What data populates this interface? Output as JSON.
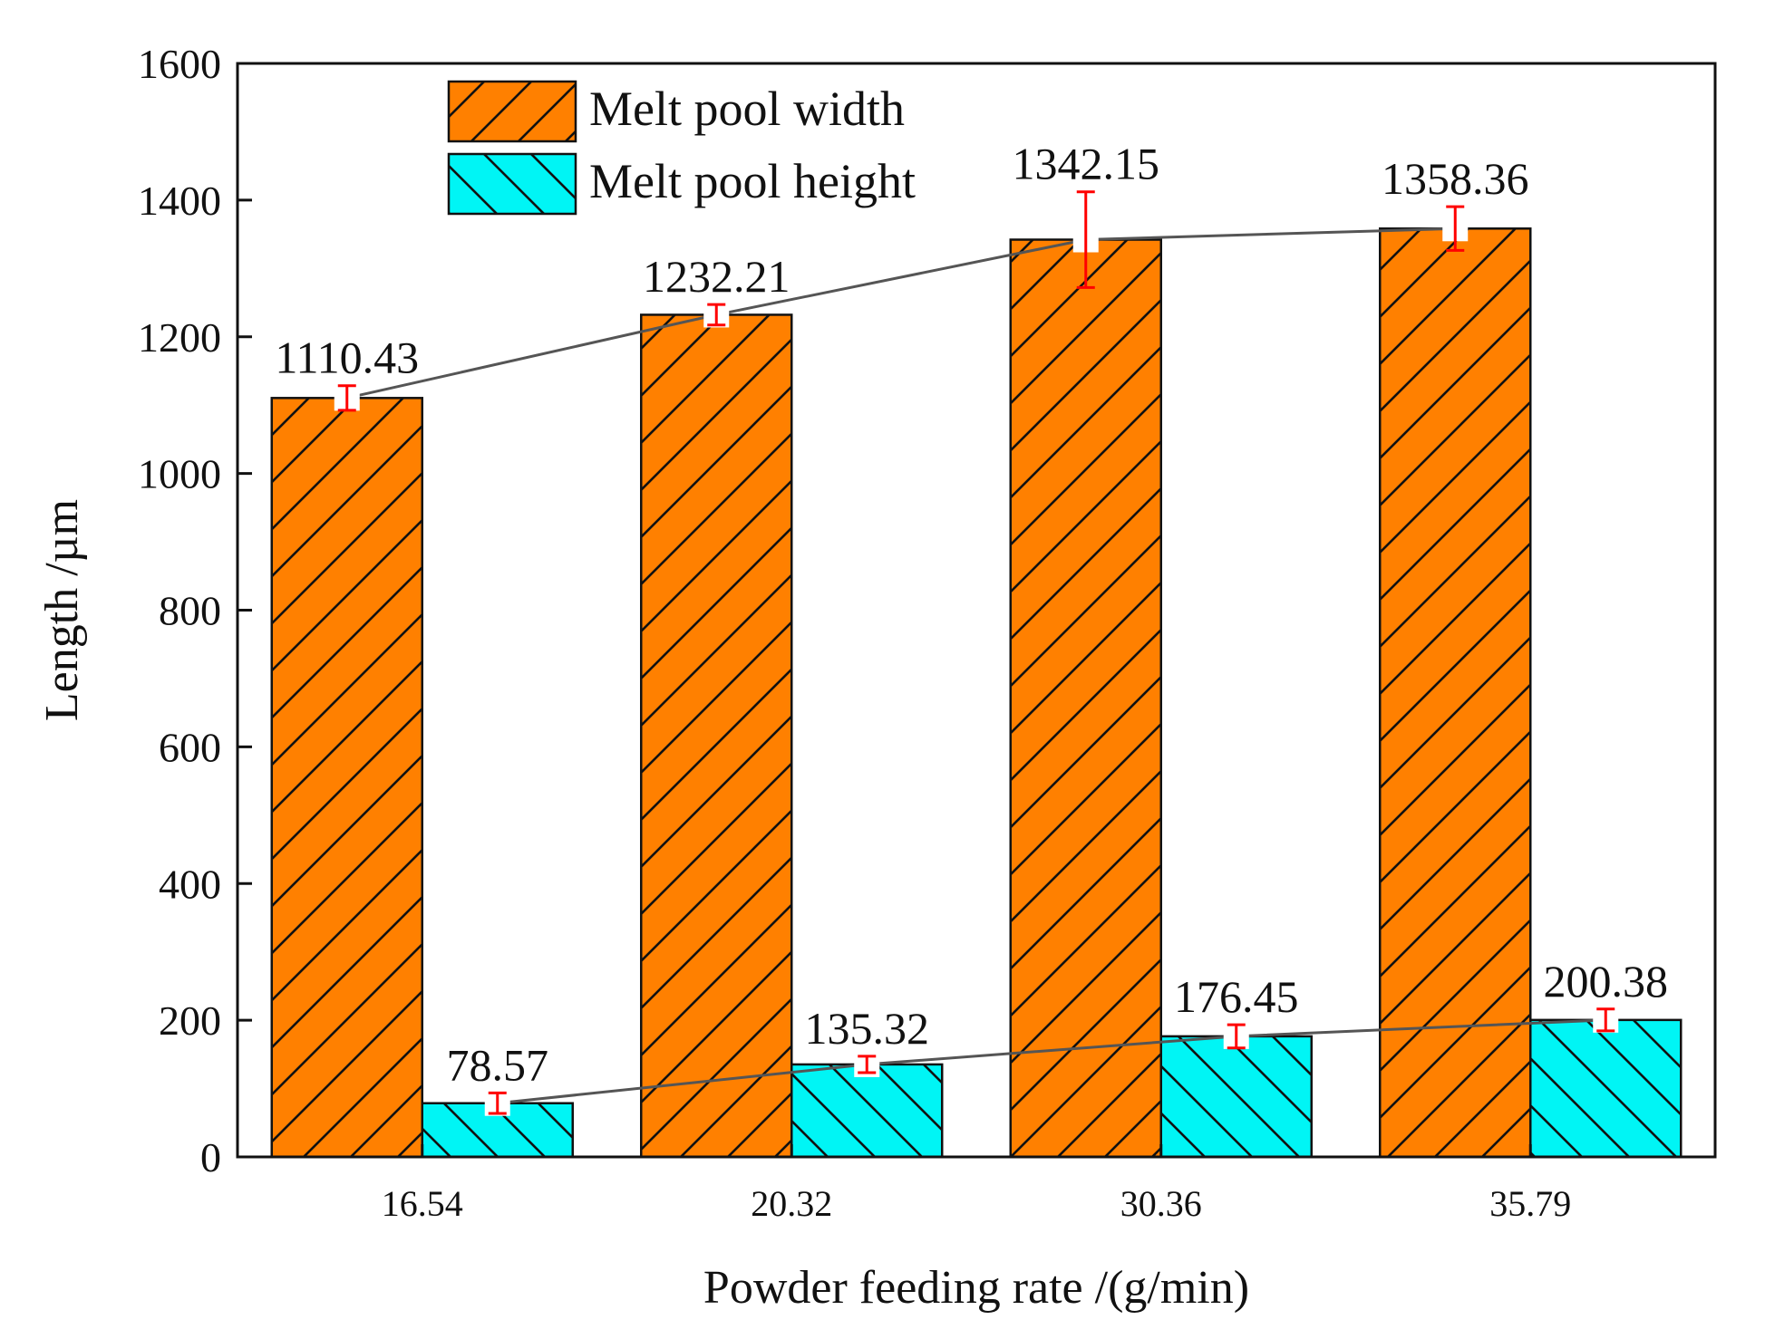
{
  "chart_data": {
    "type": "bar",
    "title": "",
    "xlabel": "Powder feeding rate /(g/min)",
    "ylabel": "Length /µm",
    "categories": [
      "16.54",
      "20.32",
      "30.36",
      "35.79"
    ],
    "ylim": [
      0,
      1600
    ],
    "yticks": [
      0,
      200,
      400,
      600,
      800,
      1000,
      1200,
      1400,
      1600
    ],
    "legend_position": "top-left",
    "grid": false,
    "series": [
      {
        "name": "Melt pool width",
        "values": [
          1110.43,
          1232.21,
          1342.15,
          1358.36
        ],
        "labels": [
          "1110.43",
          "1232.21",
          "1342.15",
          "1358.36"
        ],
        "errors": [
          18,
          15,
          70,
          32
        ],
        "color": "#ff8000",
        "hatch": "forward"
      },
      {
        "name": "Melt pool height",
        "values": [
          78.57,
          135.32,
          176.45,
          200.38
        ],
        "labels": [
          "78.57",
          "135.32",
          "176.45",
          "200.38"
        ],
        "errors": [
          15,
          12,
          17,
          16
        ],
        "color": "#00f5f5",
        "hatch": "backward"
      }
    ],
    "trend_line_color": "#555555",
    "error_bar_color": "#ff0000"
  }
}
